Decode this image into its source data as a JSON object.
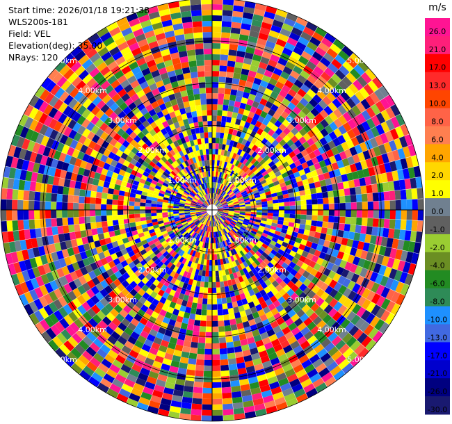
{
  "header": {
    "start_time": "Start time: 2026/01/18 19:21:38",
    "instrument": "WLS200s-181",
    "field": "Field: VEL",
    "elevation": "Elevation(deg): 35.00",
    "nrays": "NRays: 120"
  },
  "chart_data": {
    "type": "heatmap",
    "projection": "polar-ppi",
    "field": "VEL",
    "units": "m/s",
    "elevation_deg": 35.0,
    "n_rays": 120,
    "range_rings_km": [
      1.0,
      2.0,
      3.0,
      4.0,
      5.0
    ],
    "ring_labels": [
      "1.00km",
      "2.00km",
      "3.00km",
      "4.00km",
      "5.00km"
    ],
    "max_range_km": 5.0,
    "value_range": [
      -30.0,
      30.0
    ],
    "colorbar": {
      "unit_label": "m/s",
      "ticks": [
        "26.0",
        "21.0",
        "17.0",
        "13.0",
        "10.0",
        "8.0",
        "6.0",
        "4.0",
        "2.0",
        "1.0",
        "0.0",
        "-1.0",
        "-2.0",
        "-4.0",
        "-6.0",
        "-8.0",
        "-10.0",
        "-13.0",
        "-17.0",
        "-21.0",
        "-26.0",
        "-30.0"
      ],
      "colors": [
        "#ff1493",
        "#ff1f7a",
        "#ff0000",
        "#ff2a2a",
        "#ff4500",
        "#ff6347",
        "#ff7f50",
        "#ffa500",
        "#ffd700",
        "#ffff00",
        "#708090",
        "#606060",
        "#9acd32",
        "#6b8e23",
        "#228b22",
        "#2e8b57",
        "#1e90ff",
        "#4169e1",
        "#0000ff",
        "#0000cd",
        "#000080",
        "#191970"
      ]
    },
    "data_note": "Velocity field appears as noise-dominated random values across all gates"
  }
}
